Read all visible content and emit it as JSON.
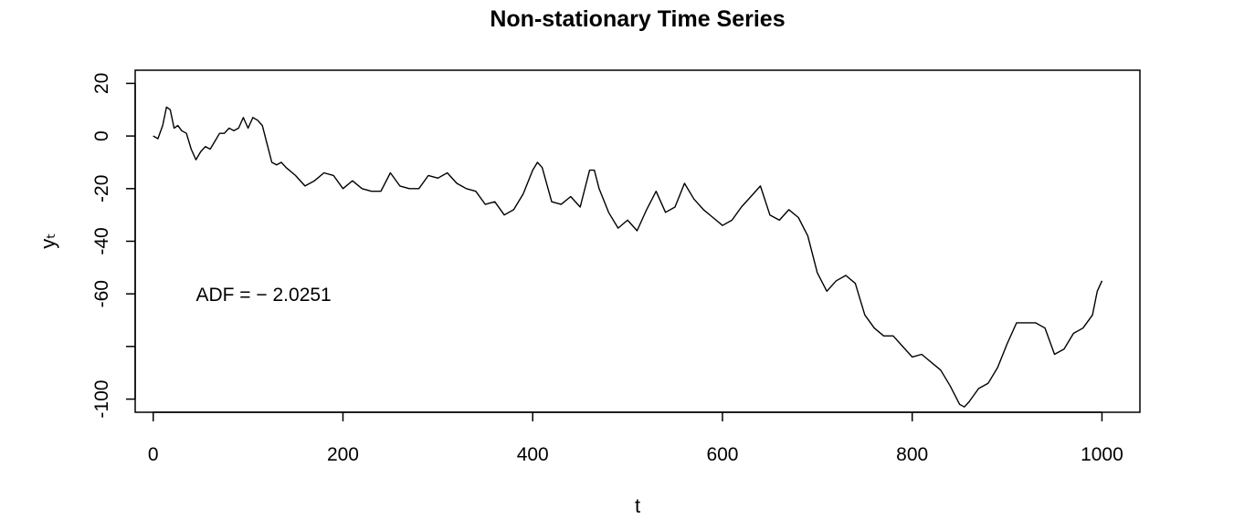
{
  "chart_data": {
    "type": "line",
    "title": "Non-stationary Time Series",
    "xlabel": "t",
    "ylabel": "yₜ",
    "xlim": [
      -19,
      1040
    ],
    "ylim": [
      -105,
      25
    ],
    "x_ticks": [
      0,
      200,
      400,
      600,
      800,
      1000
    ],
    "x_tick_labels": [
      "0",
      "200",
      "400",
      "600",
      "800",
      "1000"
    ],
    "y_ticks": [
      20,
      0,
      -20,
      -40,
      -60,
      -80,
      -100
    ],
    "y_tick_labels": [
      "20",
      "0",
      "-20",
      "-40",
      "-60",
      "",
      "-100"
    ],
    "annotation": {
      "text": "ADF = − 2.0251",
      "x": 45,
      "y": -60
    },
    "grid": false,
    "series": [
      {
        "x": [
          0,
          5,
          10,
          14,
          18,
          22,
          26,
          30,
          35,
          40,
          45,
          50,
          55,
          60,
          65,
          70,
          75,
          80,
          85,
          90,
          95,
          100,
          105,
          110,
          115,
          120,
          125,
          130,
          135,
          140,
          150,
          160,
          170,
          180,
          190,
          200,
          210,
          220,
          230,
          240,
          250,
          260,
          270,
          280,
          290,
          300,
          310,
          320,
          330,
          340,
          350,
          360,
          370,
          380,
          390,
          400,
          405,
          410,
          420,
          430,
          440,
          450,
          460,
          465,
          470,
          480,
          490,
          500,
          510,
          520,
          530,
          540,
          550,
          560,
          570,
          580,
          590,
          600,
          610,
          620,
          630,
          640,
          650,
          660,
          670,
          680,
          690,
          700,
          710,
          720,
          730,
          740,
          750,
          760,
          770,
          780,
          790,
          800,
          810,
          820,
          830,
          840,
          850,
          855,
          860,
          870,
          880,
          890,
          900,
          910,
          920,
          930,
          940,
          950,
          960,
          970,
          980,
          990,
          995,
          1000
        ],
        "y": [
          0,
          -1,
          4,
          11,
          10,
          3,
          4,
          2,
          1,
          -5,
          -9,
          -6,
          -4,
          -5,
          -2,
          1,
          1,
          3,
          2,
          3,
          7,
          3,
          7,
          6,
          4,
          -3,
          -10,
          -11,
          -10,
          -12,
          -15,
          -19,
          -17,
          -14,
          -15,
          -20,
          -17,
          -20,
          -21,
          -21,
          -14,
          -19,
          -20,
          -20,
          -15,
          -16,
          -14,
          -18,
          -20,
          -21,
          -26,
          -25,
          -30,
          -28,
          -22,
          -13,
          -10,
          -12,
          -25,
          -26,
          -23,
          -27,
          -13,
          -13,
          -20,
          -29,
          -35,
          -32,
          -36,
          -28,
          -21,
          -29,
          -27,
          -18,
          -24,
          -28,
          -31,
          -34,
          -32,
          -27,
          -23,
          -19,
          -30,
          -32,
          -28,
          -31,
          -38,
          -52,
          -59,
          -55,
          -53,
          -56,
          -68,
          -73,
          -76,
          -76,
          -80,
          -84,
          -83,
          -86,
          -89,
          -95,
          -102,
          -103,
          -101,
          -96,
          -94,
          -88,
          -79,
          -71,
          -71,
          -71,
          -73,
          -83,
          -81,
          -75,
          -73,
          -68,
          -59,
          -55
        ]
      }
    ]
  }
}
